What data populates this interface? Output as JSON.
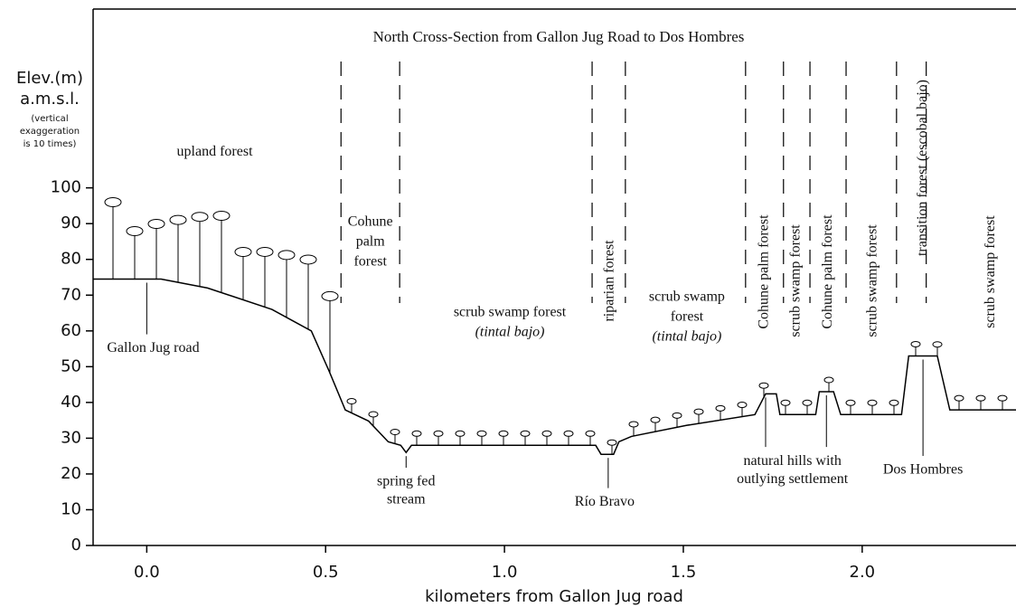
{
  "chart_data": {
    "type": "line",
    "title": "North Cross-Section from Gallon Jug Road to Dos Hombres",
    "x_label": "kilometers from Gallon Jug road",
    "y_label": [
      "Elev.(m)",
      "a.m.s.l.",
      "(vertical",
      "exaggeration",
      "is 10 times)"
    ],
    "x": [
      -0.15,
      0.04,
      0.17,
      0.35,
      0.46,
      0.51,
      0.555,
      0.62,
      0.675,
      0.71,
      0.725,
      0.74,
      1.255,
      1.27,
      1.305,
      1.32,
      1.355,
      1.51,
      1.7,
      1.73,
      1.76,
      1.77,
      1.87,
      1.88,
      1.92,
      1.94,
      2.11,
      2.13,
      2.21,
      2.245,
      2.43
    ],
    "values": [
      74.5,
      74.5,
      72,
      66,
      60,
      48.7,
      37.9,
      34.8,
      29,
      28,
      26,
      28,
      28,
      25.5,
      25.5,
      29,
      30.5,
      33.6,
      36.6,
      42.4,
      42.4,
      36.6,
      36.6,
      43,
      43,
      36.6,
      36.6,
      53,
      53,
      37.9,
      37.9
    ],
    "color": "#000000",
    "xlim": [
      -0.15,
      2.43
    ],
    "ylim": [
      0,
      150
    ],
    "xticks": [
      {
        "value": 0,
        "label": "0.0"
      },
      0.5,
      {
        "value": 1,
        "label": "1.0"
      },
      1.5,
      {
        "value": 2,
        "label": "2.0"
      }
    ],
    "yticks": [
      0,
      10,
      20,
      30,
      40,
      50,
      60,
      70,
      80,
      90,
      100
    ],
    "boundaries": [
      0.543,
      0.707,
      1.245,
      1.338,
      1.674,
      1.78,
      1.854,
      1.955,
      2.096,
      2.179
    ],
    "zone_labels": [
      {
        "lines": [
          "upland forest"
        ],
        "x": 0.19,
        "y": 110,
        "vertical": false
      },
      {
        "lines": [
          "Cohune",
          "palm",
          "forest"
        ],
        "x": 0.625,
        "y": 90.4,
        "vertical": false
      },
      {
        "lines": [
          "scrub swamp forest",
          "(tintal bajo)"
        ],
        "x": 1.015,
        "y": 65,
        "vertical": false
      },
      {
        "lines": [
          "riparian forest"
        ],
        "x": 1.295,
        "y": 74,
        "vertical": true
      },
      {
        "lines": [
          "scrub swamp",
          "forest",
          "(tintal bajo)"
        ],
        "x": 1.51,
        "y": 69.4,
        "vertical": false
      },
      {
        "lines": [
          "Cohune palm forest"
        ],
        "x": 1.727,
        "y": 76.5,
        "vertical": true
      },
      {
        "lines": [
          "scrub swamp forest"
        ],
        "x": 1.815,
        "y": 74,
        "vertical": true
      },
      {
        "lines": [
          "Cohune palm forest"
        ],
        "x": 1.905,
        "y": 76.5,
        "vertical": true
      },
      {
        "lines": [
          "scrub swamp forest"
        ],
        "x": 2.03,
        "y": 74,
        "vertical": true
      },
      {
        "lines": [
          "transition forest (escobal bajo)"
        ],
        "x": 2.17,
        "y": 105.6,
        "vertical": true
      },
      {
        "lines": [
          "scrub swamp forest"
        ],
        "x": 2.36,
        "y": 76.5,
        "vertical": true
      }
    ],
    "place_labels": [
      {
        "lines": [
          "Gallon Jug road"
        ],
        "x": 0.018,
        "y": 55,
        "pointers": [
          0.0
        ]
      },
      {
        "lines": [
          "spring fed",
          "stream"
        ],
        "x": 0.725,
        "y": 17.7,
        "pointers": [
          0.725
        ]
      },
      {
        "lines": [
          "Río Bravo"
        ],
        "x": 1.28,
        "y": 12,
        "pointers": [
          1.29
        ]
      },
      {
        "lines": [
          "natural hills with",
          "outlying settlement"
        ],
        "x": 1.805,
        "y": 23.5,
        "pointers": [
          1.73,
          1.9
        ]
      },
      {
        "lines": [
          "Dos Hombres"
        ],
        "x": 2.17,
        "y": 21,
        "pointers": [
          2.17
        ]
      }
    ]
  }
}
